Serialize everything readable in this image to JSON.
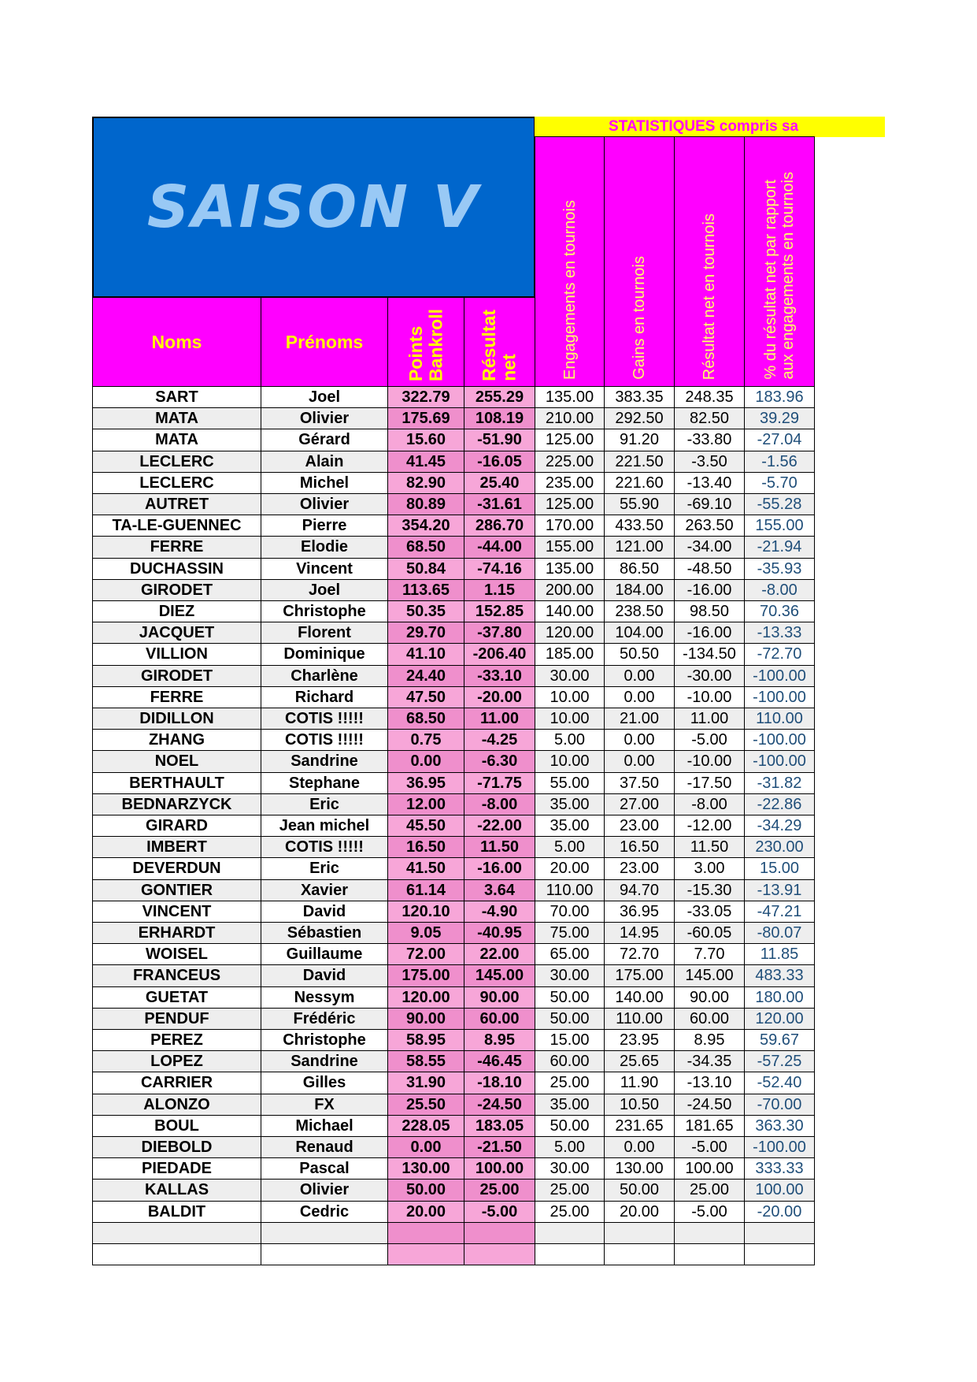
{
  "title": "SAISON V",
  "stats_banner": "STATISTIQUES compris sa",
  "headers": {
    "nom": "Noms",
    "prenom": "Prénoms",
    "points": [
      "Points",
      "Bankroll"
    ],
    "resultat": [
      "Résultat",
      "net"
    ],
    "engagements": "Engagements en tournois",
    "gains": "Gains en tournois",
    "resultat_tournois": "Résultat net en tournois",
    "pourcentage": [
      "% du résultat net par rapport",
      "aux engagements en tournois"
    ]
  },
  "table": {
    "rows": [
      [
        "SART",
        "Joel",
        "322.79",
        "255.29",
        "135.00",
        "383.35",
        "248.35",
        "183.96"
      ],
      [
        "MATA",
        "Olivier",
        "175.69",
        "108.19",
        "210.00",
        "292.50",
        "82.50",
        "39.29"
      ],
      [
        "MATA",
        "Gérard",
        "15.60",
        "-51.90",
        "125.00",
        "91.20",
        "-33.80",
        "-27.04"
      ],
      [
        "LECLERC",
        "Alain",
        "41.45",
        "-16.05",
        "225.00",
        "221.50",
        "-3.50",
        "-1.56"
      ],
      [
        "LECLERC",
        "Michel",
        "82.90",
        "25.40",
        "235.00",
        "221.60",
        "-13.40",
        "-5.70"
      ],
      [
        "AUTRET",
        "Olivier",
        "80.89",
        "-31.61",
        "125.00",
        "55.90",
        "-69.10",
        "-55.28"
      ],
      [
        "TA-LE-GUENNEC",
        "Pierre",
        "354.20",
        "286.70",
        "170.00",
        "433.50",
        "263.50",
        "155.00"
      ],
      [
        "FERRE",
        "Elodie",
        "68.50",
        "-44.00",
        "155.00",
        "121.00",
        "-34.00",
        "-21.94"
      ],
      [
        "DUCHASSIN",
        "Vincent",
        "50.84",
        "-74.16",
        "135.00",
        "86.50",
        "-48.50",
        "-35.93"
      ],
      [
        "GIRODET",
        "Joel",
        "113.65",
        "1.15",
        "200.00",
        "184.00",
        "-16.00",
        "-8.00"
      ],
      [
        "DIEZ",
        "Christophe",
        "50.35",
        "152.85",
        "140.00",
        "238.50",
        "98.50",
        "70.36"
      ],
      [
        "JACQUET",
        "Florent",
        "29.70",
        "-37.80",
        "120.00",
        "104.00",
        "-16.00",
        "-13.33"
      ],
      [
        "VILLION",
        "Dominique",
        "41.10",
        "-206.40",
        "185.00",
        "50.50",
        "-134.50",
        "-72.70"
      ],
      [
        "GIRODET",
        "Charlène",
        "24.40",
        "-33.10",
        "30.00",
        "0.00",
        "-30.00",
        "-100.00"
      ],
      [
        "FERRE",
        "Richard",
        "47.50",
        "-20.00",
        "10.00",
        "0.00",
        "-10.00",
        "-100.00"
      ],
      [
        "DIDILLON",
        "COTIS !!!!!",
        "68.50",
        "11.00",
        "10.00",
        "21.00",
        "11.00",
        "110.00"
      ],
      [
        "ZHANG",
        "COTIS !!!!!",
        "0.75",
        "-4.25",
        "5.00",
        "0.00",
        "-5.00",
        "-100.00"
      ],
      [
        "NOEL",
        "Sandrine",
        "0.00",
        "-6.30",
        "10.00",
        "0.00",
        "-10.00",
        "-100.00"
      ],
      [
        "BERTHAULT",
        "Stephane",
        "36.95",
        "-71.75",
        "55.00",
        "37.50",
        "-17.50",
        "-31.82"
      ],
      [
        "BEDNARZYCK",
        "Eric",
        "12.00",
        "-8.00",
        "35.00",
        "27.00",
        "-8.00",
        "-22.86"
      ],
      [
        "GIRARD",
        "Jean michel",
        "45.50",
        "-22.00",
        "35.00",
        "23.00",
        "-12.00",
        "-34.29"
      ],
      [
        "IMBERT",
        "COTIS !!!!!",
        "16.50",
        "11.50",
        "5.00",
        "16.50",
        "11.50",
        "230.00"
      ],
      [
        "DEVERDUN",
        "Eric",
        "41.50",
        "-16.00",
        "20.00",
        "23.00",
        "3.00",
        "15.00"
      ],
      [
        "GONTIER",
        "Xavier",
        "61.14",
        "3.64",
        "110.00",
        "94.70",
        "-15.30",
        "-13.91"
      ],
      [
        "VINCENT",
        "David",
        "120.10",
        "-4.90",
        "70.00",
        "36.95",
        "-33.05",
        "-47.21"
      ],
      [
        "ERHARDT",
        "Sébastien",
        "9.05",
        "-40.95",
        "75.00",
        "14.95",
        "-60.05",
        "-80.07"
      ],
      [
        "WOISEL",
        "Guillaume",
        "72.00",
        "22.00",
        "65.00",
        "72.70",
        "7.70",
        "11.85"
      ],
      [
        "FRANCEUS",
        "David",
        "175.00",
        "145.00",
        "30.00",
        "175.00",
        "145.00",
        "483.33"
      ],
      [
        "GUETAT",
        "Nessym",
        "120.00",
        "90.00",
        "50.00",
        "140.00",
        "90.00",
        "180.00"
      ],
      [
        "PENDUF",
        "Frédéric",
        "90.00",
        "60.00",
        "50.00",
        "110.00",
        "60.00",
        "120.00"
      ],
      [
        "PEREZ",
        "Christophe",
        "58.95",
        "8.95",
        "15.00",
        "23.95",
        "8.95",
        "59.67"
      ],
      [
        "LOPEZ",
        "Sandrine",
        "58.55",
        "-46.45",
        "60.00",
        "25.65",
        "-34.35",
        "-57.25"
      ],
      [
        "CARRIER",
        "Gilles",
        "31.90",
        "-18.10",
        "25.00",
        "11.90",
        "-13.10",
        "-52.40"
      ],
      [
        "ALONZO",
        "FX",
        "25.50",
        "-24.50",
        "35.00",
        "10.50",
        "-24.50",
        "-70.00"
      ],
      [
        "BOUL",
        "Michael",
        "228.05",
        "183.05",
        "50.00",
        "231.65",
        "181.65",
        "363.30"
      ],
      [
        "DIEBOLD",
        "Renaud",
        "0.00",
        "-21.50",
        "5.00",
        "0.00",
        "-5.00",
        "-100.00"
      ],
      [
        "PIEDADE",
        "Pascal",
        "130.00",
        "100.00",
        "30.00",
        "130.00",
        "100.00",
        "333.33"
      ],
      [
        "KALLAS",
        "Olivier",
        "50.00",
        "25.00",
        "25.00",
        "50.00",
        "25.00",
        "100.00"
      ],
      [
        "BALDIT",
        "Cedric",
        "20.00",
        "-5.00",
        "25.00",
        "20.00",
        "-5.00",
        "-20.00"
      ]
    ]
  }
}
